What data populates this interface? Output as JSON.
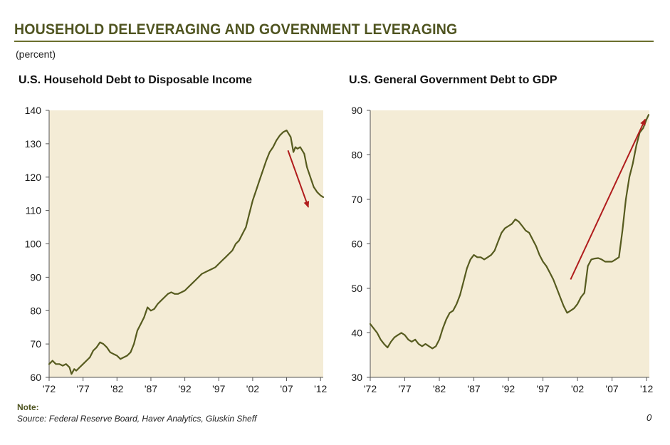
{
  "header": {
    "title": "HOUSEHOLD DELEVERAGING AND GOVERNMENT LEVERAGING",
    "unit": "(percent)"
  },
  "footer": {
    "note_label": "Note:",
    "source": "Source: Federal Reserve Board, Haver Analytics, Gluskin Sheff",
    "page_number": "0"
  },
  "colors": {
    "title": "#4f5420",
    "plot_background": "#f4ecd6",
    "series_line": "#565b1f",
    "arrow": "#b01c1c"
  },
  "chart_data": [
    {
      "type": "line",
      "title": "U.S. Household Debt to Disposable Income",
      "xlabel": "",
      "ylabel": "",
      "x_tick_labels": [
        "'72",
        "'77",
        "'82",
        "'87",
        "'92",
        "'97",
        "'02",
        "'07",
        "'12"
      ],
      "x_ticks": [
        1972,
        1977,
        1982,
        1987,
        1992,
        1997,
        2002,
        2007,
        2012
      ],
      "xlim": [
        1972,
        2012.4
      ],
      "ylim": [
        60,
        140
      ],
      "y_ticks": [
        60,
        70,
        80,
        90,
        100,
        110,
        120,
        130,
        140
      ],
      "grid": false,
      "series": [
        {
          "x": [
            1972,
            1972.5,
            1973,
            1973.5,
            1974,
            1974.5,
            1975,
            1975.3,
            1975.7,
            1976,
            1976.5,
            1977,
            1977.5,
            1978,
            1978.5,
            1979,
            1979.5,
            1980,
            1980.5,
            1981,
            1981.5,
            1982,
            1982.5,
            1983,
            1983.5,
            1984,
            1984.5,
            1985,
            1985.5,
            1986,
            1986.5,
            1987,
            1987.5,
            1988,
            1988.5,
            1989,
            1989.5,
            1990,
            1990.5,
            1991,
            1991.5,
            1992,
            1992.5,
            1993,
            1993.5,
            1994,
            1994.5,
            1995,
            1995.5,
            1996,
            1996.5,
            1997,
            1997.5,
            1998,
            1998.5,
            1999,
            1999.5,
            2000,
            2000.5,
            2001,
            2001.5,
            2002,
            2002.5,
            2003,
            2003.5,
            2004,
            2004.5,
            2005,
            2005.5,
            2006,
            2006.5,
            2007,
            2007.3,
            2007.6,
            2008,
            2008.3,
            2008.6,
            2009,
            2009.3,
            2009.6,
            2010,
            2010.5,
            2011,
            2011.5,
            2012,
            2012.4
          ],
          "values": [
            64,
            65,
            64,
            64,
            63.5,
            64,
            63,
            61,
            62.5,
            62,
            63,
            64,
            65,
            66,
            68,
            69,
            70.5,
            70,
            69,
            67.5,
            67,
            66.5,
            65.5,
            66,
            66.5,
            67.5,
            70,
            74,
            76,
            78,
            81,
            80,
            80.5,
            82,
            83,
            84,
            85,
            85.5,
            85,
            85,
            85.5,
            86,
            87,
            88,
            89,
            90,
            91,
            91.5,
            92,
            92.5,
            93,
            94,
            95,
            96,
            97,
            98,
            100,
            101,
            103,
            105,
            109,
            113,
            116,
            119,
            122,
            125,
            127.5,
            129,
            131,
            132.5,
            133.5,
            134,
            133,
            132,
            127.5,
            129,
            128.5,
            129,
            128,
            127,
            123,
            120,
            117,
            115.5,
            114.5,
            114
          ]
        }
      ],
      "annotations": [
        {
          "type": "arrow",
          "from": [
            2007.2,
            128
          ],
          "to": [
            2010.2,
            111
          ]
        }
      ]
    },
    {
      "type": "line",
      "title": "U.S. General Government Debt to GDP",
      "xlabel": "",
      "ylabel": "",
      "x_tick_labels": [
        "'72",
        "'77",
        "'82",
        "'87",
        "'92",
        "'97",
        "'02",
        "'07",
        "'12"
      ],
      "x_ticks": [
        1972,
        1977,
        1982,
        1987,
        1992,
        1997,
        2002,
        2007,
        2012
      ],
      "xlim": [
        1972,
        2012.4
      ],
      "ylim": [
        30,
        90
      ],
      "y_ticks": [
        30,
        40,
        50,
        60,
        70,
        80,
        90
      ],
      "grid": false,
      "series": [
        {
          "x": [
            1972,
            1972.5,
            1973,
            1973.5,
            1974,
            1974.5,
            1975,
            1975.5,
            1976,
            1976.5,
            1977,
            1977.5,
            1978,
            1978.5,
            1979,
            1979.5,
            1980,
            1980.5,
            1981,
            1981.5,
            1982,
            1982.5,
            1983,
            1983.5,
            1984,
            1984.5,
            1985,
            1985.5,
            1986,
            1986.5,
            1987,
            1987.5,
            1988,
            1988.5,
            1989,
            1989.5,
            1990,
            1990.5,
            1991,
            1991.5,
            1992,
            1992.5,
            1993,
            1993.5,
            1994,
            1994.5,
            1995,
            1995.5,
            1996,
            1996.5,
            1997,
            1997.5,
            1998,
            1998.5,
            1999,
            1999.5,
            2000,
            2000.5,
            2001,
            2001.5,
            2002,
            2002.5,
            2003,
            2003.5,
            2004,
            2004.5,
            2005,
            2005.5,
            2006,
            2006.5,
            2007,
            2007.5,
            2008,
            2008.5,
            2009,
            2009.5,
            2010,
            2010.5,
            2011,
            2011.5,
            2012,
            2012.3
          ],
          "values": [
            42,
            41,
            40,
            38.5,
            37.5,
            36.7,
            38,
            39,
            39.5,
            40,
            39.5,
            38.5,
            38,
            38.5,
            37.5,
            37,
            37.5,
            37,
            36.5,
            37,
            38.5,
            41,
            43,
            44.5,
            45,
            46.5,
            48.5,
            51.5,
            54.5,
            56.5,
            57.5,
            57,
            57,
            56.5,
            57,
            57.5,
            58.5,
            60.5,
            62.5,
            63.5,
            64,
            64.5,
            65.5,
            65,
            64,
            63,
            62.5,
            61,
            59.5,
            57.5,
            56,
            55,
            53.5,
            52,
            50,
            48,
            46,
            44.5,
            45,
            45.5,
            46.5,
            48,
            49,
            55,
            56.5,
            56.7,
            56.8,
            56.5,
            56,
            56,
            56,
            56.5,
            57,
            63,
            70,
            75,
            78,
            82,
            85,
            86,
            88,
            89
          ]
        }
      ],
      "annotations": [
        {
          "type": "arrow",
          "from": [
            2001,
            52
          ],
          "to": [
            2011.8,
            88
          ]
        }
      ]
    }
  ]
}
